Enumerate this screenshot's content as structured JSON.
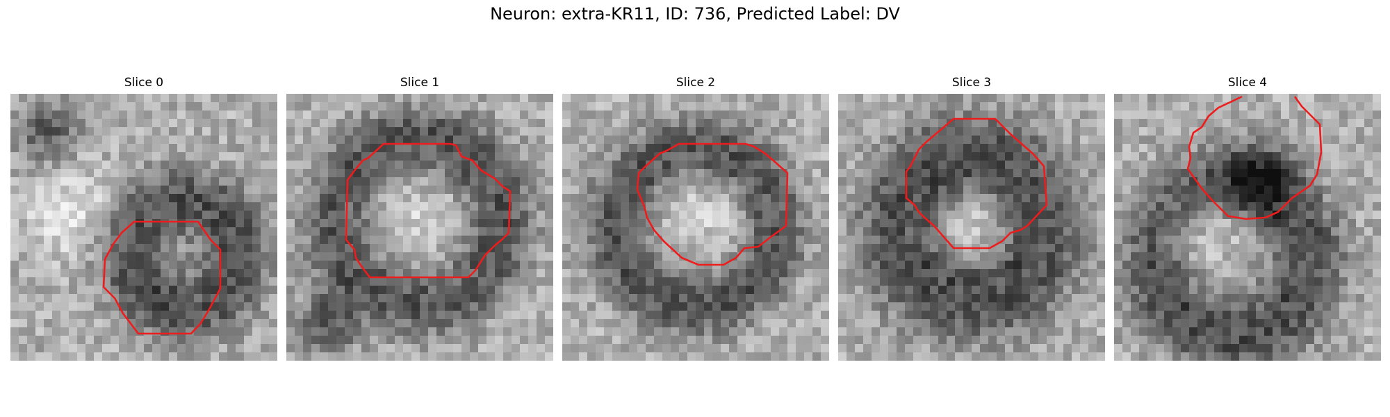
{
  "figure": {
    "title": "Neuron: extra-KR11, ID: 736, Predicted Label: DV",
    "contour_color": "#ee1c1c"
  },
  "panels": [
    {
      "title": "Slice 0"
    },
    {
      "title": "Slice 1"
    },
    {
      "title": "Slice 2"
    },
    {
      "title": "Slice 3"
    },
    {
      "title": "Slice 4"
    }
  ]
}
